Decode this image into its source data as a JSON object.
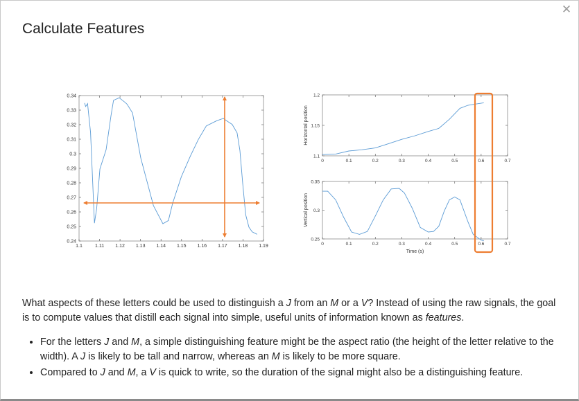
{
  "dialog": {
    "title": "Calculate Features",
    "close_icon": "close-icon"
  },
  "paragraph": {
    "part1": "What aspects of these letters could be used to distinguish a ",
    "em_j": "J",
    "part2": " from an ",
    "em_m": "M",
    "part3": " or a ",
    "em_v": "V",
    "part4": "? Instead of using the raw signals, the goal is to compute values that distill each signal into simple, useful units of information known as ",
    "em_features": "features",
    "part5": "."
  },
  "bullets": [
    {
      "a": "For the letters ",
      "b": "J",
      "c": " and ",
      "d": "M",
      "e": ", a simple distinguishing feature might be the aspect ratio (the height of the letter relative to the width). A ",
      "f": "J",
      "g": " is likely to be tall and narrow, whereas an ",
      "h": "M",
      "i": " is likely to be more square."
    },
    {
      "a": "Compared to ",
      "b": "J",
      "c": " and ",
      "d": "M",
      "e": ", a ",
      "f": "V",
      "g": " is quick to write, so the duration of the signal might also be a distinguishing feature."
    }
  ],
  "colors": {
    "line": "#5b9bd5",
    "annotation": "#ed7d31"
  },
  "chart_data": [
    {
      "type": "line",
      "title": "",
      "xlabel": "",
      "ylabel": "",
      "xlim": [
        1.1,
        1.19
      ],
      "ylim": [
        0.24,
        0.34
      ],
      "xticks": [
        "1.1",
        "1.11",
        "1.12",
        "1.13",
        "1.14",
        "1.15",
        "1.16",
        "1.17",
        "1.18",
        "1.19"
      ],
      "yticks": [
        "0.24",
        "0.25",
        "0.26",
        "0.27",
        "0.28",
        "0.29",
        "0.3",
        "0.31",
        "0.32",
        "0.33",
        "0.34"
      ],
      "x": [
        1.1027,
        1.1032,
        1.1042,
        1.1042,
        1.1056,
        1.1075,
        1.1075,
        1.1086,
        1.1102,
        1.1132,
        1.1156,
        1.1168,
        1.1196,
        1.1216,
        1.1224,
        1.1234,
        1.1261,
        1.1301,
        1.1363,
        1.1409,
        1.1436,
        1.1457,
        1.1499,
        1.1543,
        1.1582,
        1.1621,
        1.1672,
        1.1704,
        1.1725,
        1.1747,
        1.1771,
        1.1785,
        1.1798,
        1.1813,
        1.1829,
        1.1845,
        1.1869
      ],
      "y": [
        0.3349,
        0.3325,
        0.3345,
        0.3339,
        0.3146,
        0.2523,
        0.2523,
        0.2623,
        0.2896,
        0.3027,
        0.3263,
        0.3367,
        0.3385,
        0.3363,
        0.3354,
        0.3341,
        0.3281,
        0.2971,
        0.2643,
        0.2519,
        0.2541,
        0.2662,
        0.2842,
        0.2984,
        0.3098,
        0.3191,
        0.3227,
        0.3243,
        0.3222,
        0.3202,
        0.3144,
        0.3022,
        0.2802,
        0.2581,
        0.2495,
        0.2463,
        0.2446
      ]
    },
    {
      "type": "line",
      "title": "",
      "xlabel": "",
      "ylabel": "Horizontal position",
      "xlim": [
        0,
        0.7
      ],
      "ylim": [
        1.1,
        1.2
      ],
      "xticks": [
        "0",
        "0.1",
        "0.2",
        "0.3",
        "0.4",
        "0.5",
        "0.6",
        "0.7"
      ],
      "yticks": [
        "1.1",
        "1.15",
        "1.2"
      ],
      "x": [
        0,
        0.05,
        0.1,
        0.15,
        0.2,
        0.25,
        0.3,
        0.35,
        0.4,
        0.44,
        0.48,
        0.52,
        0.55,
        0.58,
        0.61
      ],
      "y": [
        1.102,
        1.103,
        1.108,
        1.11,
        1.113,
        1.12,
        1.127,
        1.133,
        1.14,
        1.145,
        1.16,
        1.178,
        1.183,
        1.185,
        1.187
      ]
    },
    {
      "type": "line",
      "title": "",
      "xlabel": "Time (s)",
      "ylabel": "Vertical position",
      "xlim": [
        0,
        0.7
      ],
      "ylim": [
        0.25,
        0.35
      ],
      "xticks": [
        "0",
        "0.1",
        "0.2",
        "0.3",
        "0.4",
        "0.5",
        "0.6",
        "0.7"
      ],
      "yticks": [
        "0.25",
        "0.3",
        "0.35"
      ],
      "x": [
        0,
        0.02,
        0.05,
        0.08,
        0.11,
        0.14,
        0.17,
        0.2,
        0.23,
        0.26,
        0.29,
        0.31,
        0.34,
        0.37,
        0.4,
        0.42,
        0.44,
        0.46,
        0.48,
        0.5,
        0.52,
        0.55,
        0.57,
        0.6,
        0.61
      ],
      "y": [
        0.333,
        0.333,
        0.318,
        0.288,
        0.262,
        0.258,
        0.263,
        0.29,
        0.318,
        0.337,
        0.338,
        0.33,
        0.303,
        0.27,
        0.262,
        0.263,
        0.272,
        0.298,
        0.318,
        0.323,
        0.318,
        0.28,
        0.258,
        0.248,
        0.247
      ]
    }
  ]
}
